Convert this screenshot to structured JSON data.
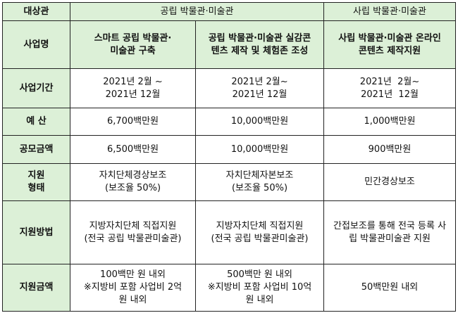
{
  "header": {
    "corner": "대상관",
    "public": "공립 박물관·미술관",
    "private": "사립 박물관·미술관"
  },
  "rows": {
    "business_name": {
      "label": "사업명",
      "c1": [
        "스마트 공립 박물관·",
        "미술관 구축"
      ],
      "c2": [
        "공립 박물관·미술관 실감콘",
        "텐츠 제작 및 체험존 조성"
      ],
      "c3": [
        "사립 박물관·미술관 온라인",
        "콘텐츠 제작지원"
      ]
    },
    "period": {
      "label": "사업기간",
      "c1": [
        "2021년 2월 ~",
        "2021년 12월"
      ],
      "c2": [
        "2021년 2월~",
        "2021년 12월"
      ],
      "c3": [
        "2021년  2월~",
        "2021년  12월"
      ]
    },
    "budget": {
      "label": "예 산",
      "c1": "6,700백만원",
      "c2": "10,000백만원",
      "c3": "1,000백만원"
    },
    "contest_amount": {
      "label": "공모금액",
      "c1": "6,500백만원",
      "c2": "10,000백만원",
      "c3": "900백만원"
    },
    "support_type": {
      "label": [
        "지원",
        "형태"
      ],
      "c1": [
        "자치단체경상보조",
        "(보조율 50%)"
      ],
      "c2": [
        "자치단체자본보조",
        "(보조율 50%)"
      ],
      "c3": "민간경상보조"
    },
    "support_method": {
      "label": "지원방법",
      "c1": [
        "지방자치단체 직접지원",
        "(전국 공립 박물관미술관)"
      ],
      "c2": [
        "지방자치단체 직접지원",
        "(전국 공립 박물관미술관)"
      ],
      "c3": [
        "간접보조를 통해 전국 등록 사",
        "립 박물관미술관 지원"
      ]
    },
    "support_amount": {
      "label": "지원금액",
      "c1": [
        "100백만 원 내외",
        "※지방비 포함 사업비 2억",
        "원 내외"
      ],
      "c2": [
        "500백만 원 내외",
        "※지방비 포함 사업비 10억",
        "원 내외"
      ],
      "c3": "50백만원 내외"
    }
  }
}
